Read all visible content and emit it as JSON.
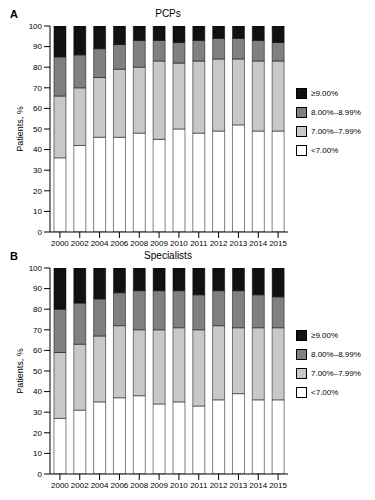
{
  "chart_data": [
    {
      "type": "bar",
      "panel": "A",
      "title": "PCPs",
      "ylabel": "Patients, %",
      "stacked": true,
      "categories": [
        "2000",
        "2002",
        "2004",
        "2006",
        "2008",
        "2009",
        "2010",
        "2011",
        "2012",
        "2013",
        "2014",
        "2015"
      ],
      "series": [
        {
          "name": "<7.00%",
          "color": "#ffffff",
          "values": [
            36,
            42,
            46,
            46,
            48,
            45,
            50,
            48,
            49,
            52,
            49,
            49
          ]
        },
        {
          "name": "7.00%–7.99%",
          "color": "#c8c8c8",
          "values": [
            30,
            28,
            29,
            33,
            32,
            38,
            32,
            35,
            35,
            32,
            34,
            34
          ]
        },
        {
          "name": "8.00%–8.99%",
          "color": "#808080",
          "values": [
            19,
            16,
            14,
            12,
            13,
            10,
            10,
            10,
            10,
            10,
            10,
            9
          ]
        },
        {
          "name": "≥9.00%",
          "color": "#111111",
          "values": [
            15,
            14,
            11,
            9,
            7,
            7,
            8,
            7,
            6,
            6,
            7,
            8
          ]
        }
      ],
      "ylim": [
        0,
        100
      ],
      "yticks": [
        0,
        10,
        20,
        30,
        40,
        50,
        60,
        70,
        80,
        90,
        100
      ]
    },
    {
      "type": "bar",
      "panel": "B",
      "title": "Specialists",
      "ylabel": "Patients, %",
      "stacked": true,
      "categories": [
        "2000",
        "2002",
        "2004",
        "2006",
        "2008",
        "2009",
        "2010",
        "2011",
        "2012",
        "2013",
        "2014",
        "2015"
      ],
      "series": [
        {
          "name": "<7.00%",
          "color": "#ffffff",
          "values": [
            27,
            31,
            35,
            37,
            38,
            34,
            35,
            33,
            36,
            39,
            36,
            36
          ]
        },
        {
          "name": "7.00%–7.99%",
          "color": "#c8c8c8",
          "values": [
            32,
            32,
            32,
            35,
            32,
            36,
            36,
            37,
            36,
            32,
            35,
            35
          ]
        },
        {
          "name": "8.00%–8.99%",
          "color": "#808080",
          "values": [
            21,
            20,
            18,
            16,
            19,
            19,
            18,
            17,
            17,
            18,
            16,
            15
          ]
        },
        {
          "name": "≥9.00%",
          "color": "#111111",
          "values": [
            20,
            17,
            15,
            12,
            11,
            11,
            11,
            13,
            11,
            11,
            13,
            14
          ]
        }
      ],
      "ylim": [
        0,
        100
      ],
      "yticks": [
        0,
        10,
        20,
        30,
        40,
        50,
        60,
        70,
        80,
        90,
        100
      ]
    }
  ]
}
